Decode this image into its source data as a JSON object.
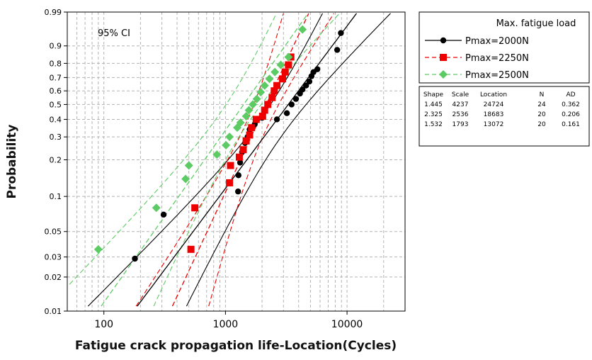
{
  "chart_data": {
    "type": "scatter",
    "title": "",
    "xlabel": "Fatigue crack propagation life-Location(Cycles)",
    "ylabel": "Probability",
    "x_scale": "log",
    "y_scale": "weibull-probability",
    "xlim": [
      50,
      30000
    ],
    "ylim": [
      0.01,
      0.99
    ],
    "x_ticks": [
      100,
      1000,
      10000
    ],
    "y_ticks": [
      0.01,
      0.02,
      0.03,
      0.05,
      0.1,
      0.2,
      0.3,
      0.4,
      0.5,
      0.6,
      0.7,
      0.8,
      0.9,
      0.99
    ],
    "y_tick_labels": [
      "0.01",
      "0.02",
      "0.03",
      "0.05",
      "0.1",
      "0.2",
      "0.3",
      "0.4",
      "0.5",
      "0.6",
      "0.7",
      "0.8",
      "0.9",
      "0.99"
    ],
    "grid": true,
    "annotation": "95% CI",
    "legend_title": "Max. fatigue load",
    "legend_position": "right",
    "series": [
      {
        "name": "Pmax=2000N",
        "color": "#000000",
        "marker": "circle",
        "line_style": "solid",
        "fit": {
          "shape": 1.445,
          "scale": 4237
        },
        "x": [
          180,
          310,
          1270,
          1280,
          1320,
          1370,
          1450,
          1520,
          1580,
          1740,
          2000,
          2650,
          3200,
          3500,
          3800,
          4100,
          4300,
          4600,
          4900,
          5100,
          5300,
          5700,
          8300,
          8900
        ],
        "y": [
          0.029,
          0.07,
          0.11,
          0.15,
          0.19,
          0.23,
          0.27,
          0.3,
          0.34,
          0.37,
          0.41,
          0.4,
          0.44,
          0.5,
          0.54,
          0.58,
          0.61,
          0.64,
          0.67,
          0.71,
          0.74,
          0.76,
          0.88,
          0.95
        ]
      },
      {
        "name": "Pmax=2250N",
        "color": "#ee0000",
        "marker": "square",
        "line_style": "dashed",
        "fit": {
          "shape": 2.325,
          "scale": 2536
        },
        "x": [
          520,
          560,
          1080,
          1100,
          1300,
          1400,
          1480,
          1580,
          1640,
          1790,
          2020,
          2100,
          2230,
          2420,
          2520,
          2650,
          2950,
          3100,
          3300,
          3450
        ],
        "y": [
          0.035,
          0.08,
          0.13,
          0.18,
          0.21,
          0.24,
          0.28,
          0.31,
          0.35,
          0.4,
          0.42,
          0.46,
          0.5,
          0.55,
          0.6,
          0.64,
          0.69,
          0.74,
          0.79,
          0.84
        ]
      },
      {
        "name": "Pmax=2500N",
        "color": "#5dcb63",
        "marker": "diamond",
        "line_style": "dashed",
        "fit": {
          "shape": 1.532,
          "scale": 1793
        },
        "x": [
          90,
          270,
          470,
          500,
          850,
          1010,
          1080,
          1250,
          1330,
          1480,
          1560,
          1680,
          1810,
          1950,
          2100,
          2300,
          2550,
          2850,
          3300,
          4300
        ],
        "y": [
          0.035,
          0.08,
          0.14,
          0.18,
          0.22,
          0.26,
          0.3,
          0.35,
          0.38,
          0.42,
          0.46,
          0.5,
          0.54,
          0.59,
          0.64,
          0.69,
          0.74,
          0.79,
          0.84,
          0.96
        ]
      }
    ]
  },
  "stats_table": {
    "headers": [
      "Shape",
      "Scale",
      "Location",
      "N",
      "AD"
    ],
    "rows": [
      [
        "1.445",
        "4237",
        "24724",
        "24",
        "0.362"
      ],
      [
        "2.325",
        "2536",
        "18683",
        "20",
        "0.206"
      ],
      [
        "1.532",
        "1793",
        "13072",
        "20",
        "0.161"
      ]
    ]
  }
}
